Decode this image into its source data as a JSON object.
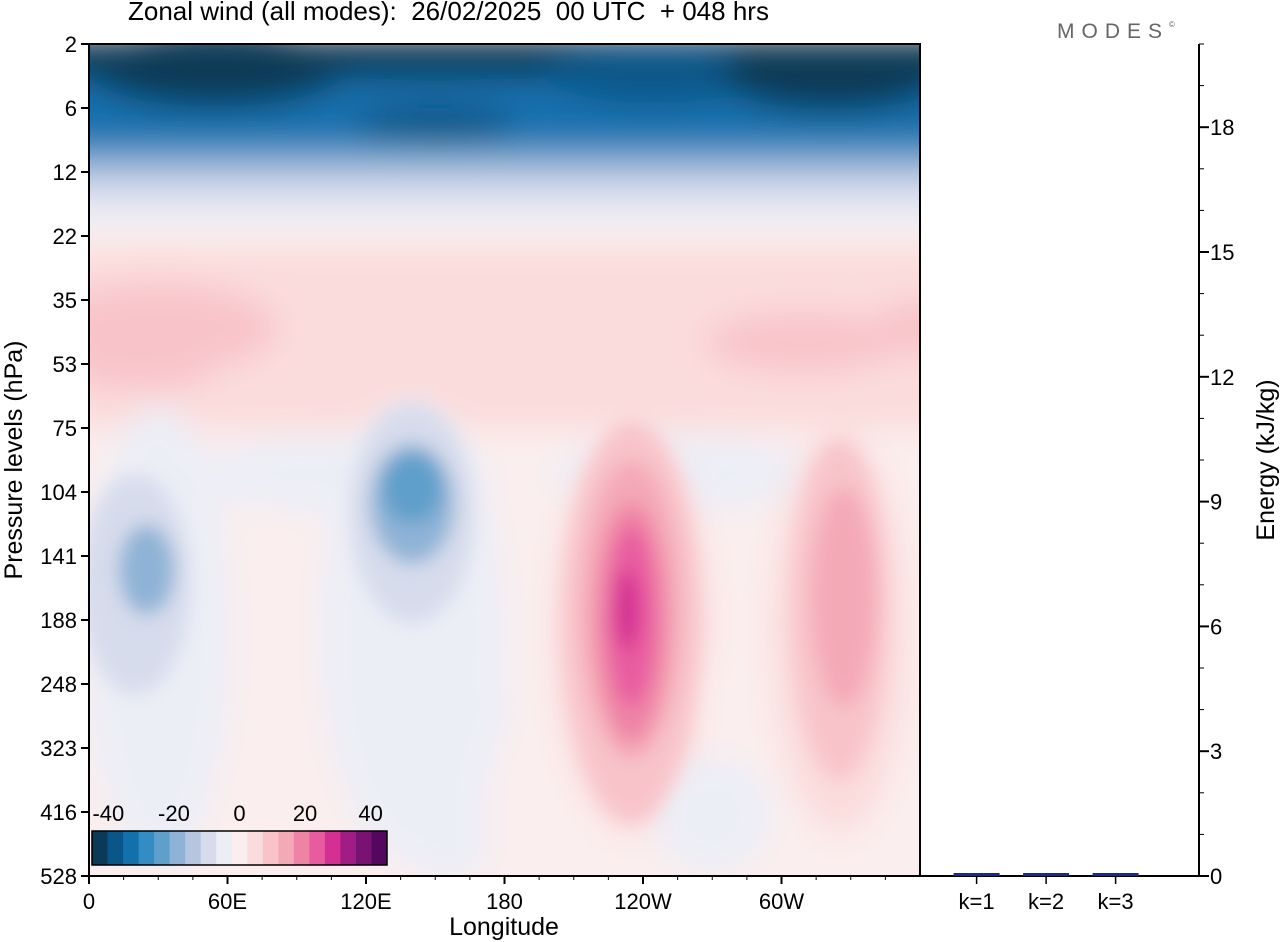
{
  "title": "Zonal wind (all modes):  26/02/2025  00 UTC  + 048 hrs",
  "logo": "MODES",
  "logo_mark": "©",
  "colors": {
    "palette": [
      "#0a3a57",
      "#0b5688",
      "#1470ad",
      "#338cc3",
      "#5f9fcb",
      "#8fb3d6",
      "#b6c5e0",
      "#d7dcec",
      "#eceef6",
      "#fbeeee",
      "#fbdcdc",
      "#f8c4ca",
      "#f4a9b7",
      "#ef83a6",
      "#e85ba0",
      "#d42f92",
      "#a11d85",
      "#7a1274",
      "#54075f"
    ],
    "bar": "#1a2a8a"
  },
  "chart_data": [
    {
      "type": "heatmap",
      "title": "Zonal wind (all modes):  26/02/2025  00 UTC  + 048 hrs",
      "xlabel": "Longitude",
      "ylabel": "Pressure levels (hPa)",
      "x_ticks": [
        "0",
        "60E",
        "120E",
        "180",
        "120W",
        "60W"
      ],
      "x_tick_degrees": [
        0,
        60,
        120,
        180,
        240,
        300
      ],
      "xlim": [
        0,
        360
      ],
      "y_ticks": [
        "2",
        "6",
        "12",
        "22",
        "35",
        "53",
        "75",
        "104",
        "141",
        "188",
        "248",
        "323",
        "416",
        "528"
      ],
      "colorbar": {
        "ticks": [
          -40,
          -20,
          0,
          20,
          40
        ],
        "range": [
          -45,
          45
        ],
        "levels": 19
      },
      "features": [
        {
          "name": "upper westward band",
          "pressure_hPa": [
            2,
            12
          ],
          "value": -40
        },
        {
          "name": "negative core",
          "longitude": 140,
          "pressure_hPa": 104,
          "value": -22
        },
        {
          "name": "negative core",
          "longitude": 18,
          "pressure_hPa": 141,
          "value": -18
        },
        {
          "name": "positive jet core",
          "longitude": 235,
          "pressure_hPa": 188,
          "value": 28
        },
        {
          "name": "positive jet core",
          "longitude": 325,
          "pressure_hPa": 170,
          "value": 16
        },
        {
          "name": "positive band",
          "pressure_hPa": [
            35,
            53
          ],
          "value": 6
        }
      ]
    },
    {
      "type": "bar",
      "categories": [
        "k=1",
        "k=2",
        "k=3"
      ],
      "values": [
        0.05,
        0.03,
        0.02
      ],
      "ylabel": "Energy (kJ/kg)",
      "y_ticks": [
        0,
        3,
        6,
        9,
        12,
        15,
        18
      ],
      "ylim": [
        0,
        20
      ]
    }
  ]
}
